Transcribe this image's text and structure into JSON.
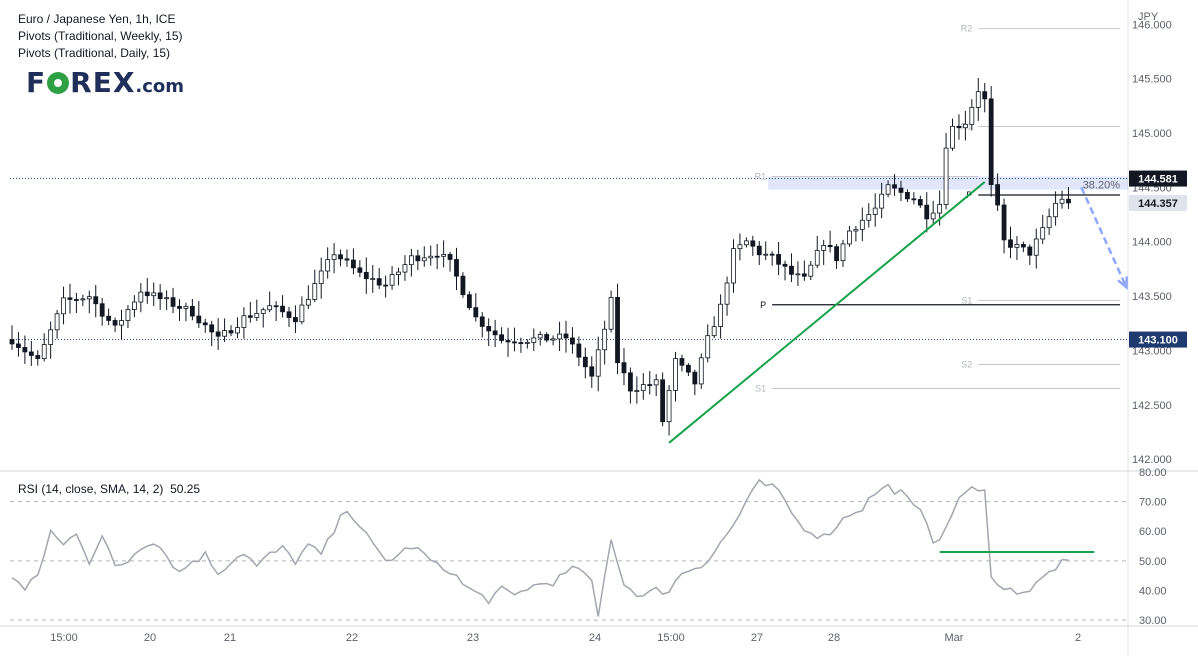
{
  "header": {
    "symbol_line": "Euro / Japanese Yen, 1h, ICE",
    "pivots_weekly": "Pivots (Traditional, Weekly, 15)",
    "pivots_daily": "Pivots (Traditional, Daily, 15)"
  },
  "logo": {
    "text_pre": "F",
    "text_post": "REX",
    "suffix": ".com"
  },
  "chart_data": [
    {
      "type": "candlestick",
      "title": "Euro / Japanese Yen, 1h, ICE",
      "currency_label": "JPY",
      "ylim": [
        141.9,
        146.15
      ],
      "y_ticks": [
        "146.000",
        "145.500",
        "145.000",
        "144.500",
        "144.000",
        "143.500",
        "143.000",
        "142.500",
        "142.000"
      ],
      "y_tick_values": [
        146.0,
        145.5,
        145.0,
        144.5,
        144.0,
        143.5,
        143.0,
        142.5,
        142.0
      ],
      "x_ticks": [
        "15:00",
        "20",
        "21",
        "22",
        "23",
        "24",
        "15:00",
        "27",
        "28",
        "Mar",
        "2"
      ],
      "price_labels": [
        {
          "text": "144.581",
          "value": 144.581,
          "style": "dark"
        },
        {
          "text": "144.357",
          "value": 144.357,
          "style": "gray"
        },
        {
          "text": "143.100",
          "value": 143.1,
          "style": "blue"
        }
      ],
      "pivot_lines": [
        {
          "label": "R2",
          "value": 145.96,
          "from_candle": 150,
          "to_candle": 180,
          "color": "#c8c8c8"
        },
        {
          "label": "R1",
          "value": 144.6,
          "from_candle": 118,
          "to_candle": 150,
          "color": "#c8c8c8"
        },
        {
          "label": "R1",
          "value": 145.06,
          "from_candle": 150,
          "to_candle": 180,
          "color": "#c8c8c8"
        },
        {
          "label": "P",
          "value": 144.43,
          "from_candle": 150,
          "to_candle": 180,
          "color": "#131722"
        },
        {
          "label": "P",
          "value": 143.42,
          "from_candle": 118,
          "to_candle": 180,
          "color": "#131722"
        },
        {
          "label": "S1",
          "value": 143.46,
          "from_candle": 150,
          "to_candle": 180,
          "color": "#c8c8c8"
        },
        {
          "label": "S2",
          "value": 142.87,
          "from_candle": 150,
          "to_candle": 180,
          "color": "#c8c8c8"
        },
        {
          "label": "S1",
          "value": 142.65,
          "from_candle": 118,
          "to_candle": 180,
          "color": "#c8c8c8"
        }
      ],
      "fib_zone": {
        "label": "38.20%",
        "low": 144.48,
        "high": 144.6
      },
      "dotted_levels": [
        144.581,
        143.1
      ],
      "trendline": {
        "from": [
          102,
          142.15
        ],
        "to": [
          151,
          144.55
        ],
        "color": "#16a34a"
      },
      "projection_arrow": {
        "from": [
          166,
          144.5
        ],
        "to": [
          173,
          143.58
        ],
        "color": "#8fa8ff"
      },
      "anchors": [
        [
          0,
          143.1
        ],
        [
          4,
          142.9
        ],
        [
          8,
          143.45
        ],
        [
          12,
          143.5
        ],
        [
          16,
          143.2
        ],
        [
          20,
          143.55
        ],
        [
          24,
          143.45
        ],
        [
          28,
          143.35
        ],
        [
          32,
          143.1
        ],
        [
          36,
          143.3
        ],
        [
          40,
          143.4
        ],
        [
          44,
          143.3
        ],
        [
          50,
          143.9
        ],
        [
          54,
          143.7
        ],
        [
          58,
          143.6
        ],
        [
          62,
          143.85
        ],
        [
          66,
          143.9
        ],
        [
          68,
          143.8
        ],
        [
          72,
          143.3
        ],
        [
          76,
          143.1
        ],
        [
          80,
          143.1
        ],
        [
          86,
          143.12
        ],
        [
          88,
          142.95
        ],
        [
          90,
          142.75
        ],
        [
          92,
          143.2
        ],
        [
          93,
          143.45
        ],
        [
          94,
          142.9
        ],
        [
          96,
          142.65
        ],
        [
          100,
          142.7
        ],
        [
          101,
          142.35
        ],
        [
          103,
          142.9
        ],
        [
          106,
          142.7
        ],
        [
          108,
          143.1
        ],
        [
          110,
          143.4
        ],
        [
          112,
          143.9
        ],
        [
          114,
          144.0
        ],
        [
          116,
          143.9
        ],
        [
          118,
          143.85
        ],
        [
          121,
          143.7
        ],
        [
          123,
          143.65
        ],
        [
          126,
          144.0
        ],
        [
          128,
          143.85
        ],
        [
          130,
          144.1
        ],
        [
          134,
          144.3
        ],
        [
          136,
          144.5
        ],
        [
          138,
          144.45
        ],
        [
          140,
          144.4
        ],
        [
          142,
          144.25
        ],
        [
          144,
          144.35
        ],
        [
          145,
          144.9
        ],
        [
          146,
          145.05
        ],
        [
          148,
          145.1
        ],
        [
          150,
          145.4
        ],
        [
          151,
          145.3
        ],
        [
          152,
          144.5
        ],
        [
          153,
          144.3
        ],
        [
          154,
          144.0
        ],
        [
          156,
          143.95
        ],
        [
          158,
          143.9
        ],
        [
          160,
          144.1
        ],
        [
          162,
          144.35
        ],
        [
          164,
          144.45
        ]
      ],
      "last_close": 144.357
    },
    {
      "type": "line",
      "title": "RSI (14, close, SMA, 14, 2)",
      "current_value": "50.25",
      "ylim": [
        28,
        80
      ],
      "y_ticks": [
        "80.00",
        "70.00",
        "60.00",
        "50.00",
        "40.00",
        "30.00"
      ],
      "y_tick_values": [
        80,
        70,
        60,
        50,
        40,
        30
      ],
      "dashed_levels": [
        70,
        50,
        30
      ],
      "support_line": {
        "value": 53,
        "from_candle": 144,
        "to_candle": 168,
        "color": "#16a34a"
      },
      "anchors": [
        [
          0,
          45
        ],
        [
          2,
          40
        ],
        [
          4,
          45
        ],
        [
          6,
          60
        ],
        [
          8,
          55
        ],
        [
          10,
          60
        ],
        [
          12,
          50
        ],
        [
          14,
          58
        ],
        [
          16,
          48
        ],
        [
          18,
          50
        ],
        [
          20,
          55
        ],
        [
          22,
          57
        ],
        [
          24,
          52
        ],
        [
          26,
          46
        ],
        [
          28,
          50
        ],
        [
          30,
          52
        ],
        [
          32,
          46
        ],
        [
          34,
          50
        ],
        [
          36,
          53
        ],
        [
          38,
          48
        ],
        [
          40,
          52
        ],
        [
          42,
          54
        ],
        [
          44,
          50
        ],
        [
          46,
          55
        ],
        [
          48,
          52
        ],
        [
          50,
          60
        ],
        [
          52,
          68
        ],
        [
          54,
          62
        ],
        [
          56,
          55
        ],
        [
          58,
          50
        ],
        [
          60,
          52
        ],
        [
          62,
          55
        ],
        [
          64,
          52
        ],
        [
          66,
          48
        ],
        [
          68,
          47
        ],
        [
          70,
          42
        ],
        [
          72,
          39
        ],
        [
          74,
          37
        ],
        [
          76,
          40
        ],
        [
          78,
          38
        ],
        [
          80,
          41
        ],
        [
          84,
          43
        ],
        [
          88,
          48
        ],
        [
          90,
          42
        ],
        [
          91,
          31
        ],
        [
          93,
          58
        ],
        [
          95,
          42
        ],
        [
          98,
          38
        ],
        [
          100,
          40
        ],
        [
          102,
          40
        ],
        [
          104,
          46
        ],
        [
          108,
          50
        ],
        [
          110,
          56
        ],
        [
          112,
          62
        ],
        [
          114,
          70
        ],
        [
          116,
          76
        ],
        [
          118,
          75
        ],
        [
          120,
          70
        ],
        [
          122,
          63
        ],
        [
          124,
          60
        ],
        [
          126,
          58
        ],
        [
          128,
          62
        ],
        [
          130,
          66
        ],
        [
          132,
          68
        ],
        [
          134,
          73
        ],
        [
          136,
          75
        ],
        [
          138,
          73
        ],
        [
          140,
          68
        ],
        [
          142,
          64
        ],
        [
          143,
          57
        ],
        [
          145,
          60
        ],
        [
          147,
          72
        ],
        [
          149,
          74
        ],
        [
          150,
          73
        ],
        [
          151,
          73
        ],
        [
          152,
          46
        ],
        [
          154,
          40
        ],
        [
          158,
          40
        ],
        [
          160,
          44
        ],
        [
          162,
          48
        ],
        [
          164,
          50.25
        ]
      ]
    }
  ]
}
